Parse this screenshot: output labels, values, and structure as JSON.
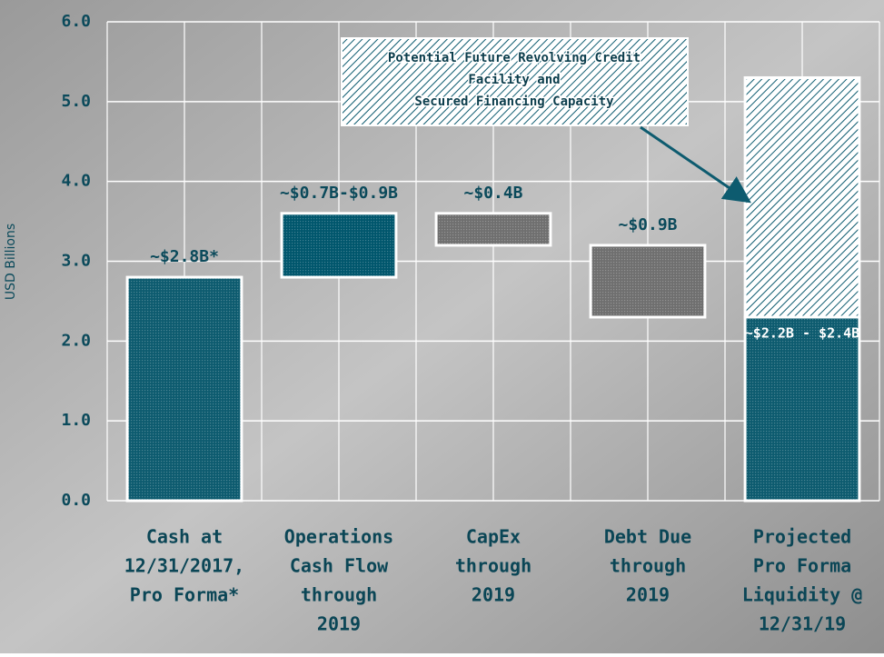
{
  "chart_data": {
    "type": "waterfall",
    "y_label": "USD Billions",
    "categories": [
      [
        "Cash at",
        "12/31/2017,",
        "Pro Forma*"
      ],
      [
        "Operations",
        "Cash Flow",
        "through",
        "2019"
      ],
      [
        "CapEx",
        "through",
        "2019"
      ],
      [
        "Debt Due",
        "through",
        "2019"
      ],
      [
        "Projected",
        "Pro Forma",
        "Liquidity @",
        "12/31/19"
      ]
    ],
    "steps": [
      "total",
      "increase",
      "decrease",
      "decrease",
      "total"
    ],
    "values": [
      2.8,
      0.8,
      0.4,
      0.9,
      2.3
    ],
    "value_labels": [
      "~$2.8B*",
      "~$0.7B-$0.9B",
      "~$0.4B",
      "~$0.9B",
      "~$2.2B - $2.4B"
    ],
    "colors": [
      "#0d5b6f",
      "#00566c",
      "#6f6f6f",
      "#6f6f6f",
      "#0d5b6f"
    ],
    "capacity": {
      "name": [
        "Potential Future Revolving Credit",
        "Facility and",
        "Secured Financing Capacity"
      ],
      "value": 3.0,
      "color": "#0d5b6f"
    },
    "ylim": [
      0,
      6
    ],
    "yticks": [
      {
        "value": 0,
        "label": "0.0"
      },
      {
        "value": 1,
        "label": "1.0"
      },
      {
        "value": 2,
        "label": "2.0"
      },
      {
        "value": 3,
        "label": "3.0"
      },
      {
        "value": 4,
        "label": "4.0"
      },
      {
        "value": 5,
        "label": "5.0"
      },
      {
        "value": 6,
        "label": "6.0"
      }
    ],
    "grid": true
  }
}
